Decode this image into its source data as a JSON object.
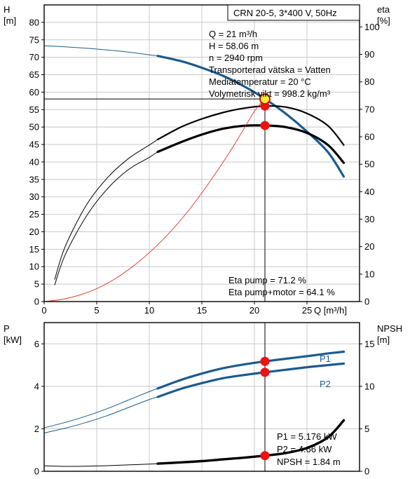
{
  "chart_data": [
    {
      "type": "line",
      "title": "CRN 20-5, 3*400 V, 50Hz",
      "xlabel": "Q [m³/h]",
      "ylabel_left": "H\n[m]",
      "ylabel_right": "eta\n[%]",
      "xlim": [
        0,
        30
      ],
      "ylim_left": [
        0,
        85
      ],
      "ylim_right": [
        0,
        108
      ],
      "x_ticks": [
        0,
        5,
        10,
        15,
        20,
        25
      ],
      "y_left_ticks": [
        0,
        5,
        10,
        15,
        20,
        25,
        30,
        35,
        40,
        45,
        50,
        55,
        60,
        65,
        70,
        75,
        80
      ],
      "y_right_ticks": [
        0,
        10,
        20,
        30,
        40,
        50,
        60,
        70,
        80,
        90,
        100
      ],
      "grid": true,
      "series": [
        {
          "axis": "left",
          "role": "head-extension",
          "color": "#1b5b8f",
          "x": [
            0,
            2,
            4,
            6,
            8,
            10,
            10.8
          ],
          "y": [
            73.3,
            73.0,
            72.6,
            72.1,
            71.5,
            70.7,
            70.4
          ]
        },
        {
          "axis": "left",
          "role": "head",
          "color": "#1b5b8f",
          "x": [
            10.8,
            13,
            15,
            17,
            19,
            21,
            23,
            25,
            27,
            28.5
          ],
          "y": [
            70.4,
            68.9,
            67.0,
            64.7,
            61.7,
            58.1,
            53.8,
            48.7,
            42.8,
            35.8
          ]
        },
        {
          "axis": "right",
          "role": "eta-pump",
          "color": "#000000",
          "x": [
            1,
            2,
            4,
            6,
            8,
            10,
            10.8,
            13,
            15,
            17,
            19,
            21,
            23,
            25,
            27,
            28.5
          ],
          "y": [
            8,
            20,
            35,
            45,
            52,
            57,
            59,
            63.5,
            66.5,
            68.8,
            70.4,
            71.2,
            70.8,
            68.5,
            64,
            57
          ]
        },
        {
          "axis": "right",
          "role": "eta-pump-motor",
          "color": "#000000",
          "x": [
            1,
            2,
            4,
            6,
            8,
            10,
            10.8,
            13,
            15,
            17,
            19,
            21,
            23,
            25,
            27,
            28.5
          ],
          "y": [
            6,
            17,
            31,
            41,
            48,
            52.5,
            54.5,
            58,
            60.8,
            62.9,
            64,
            64.1,
            63.5,
            61.4,
            57,
            50.5
          ]
        },
        {
          "axis": "left",
          "role": "system-curve",
          "color": "#e03020",
          "x": [
            0,
            2,
            4,
            6,
            8,
            10,
            12,
            14,
            16,
            18,
            20,
            21
          ],
          "y": [
            0,
            0.8,
            2.5,
            5.2,
            9.1,
            14,
            20,
            27.1,
            35.4,
            44.5,
            54.5,
            58.06
          ]
        }
      ],
      "duty_point": {
        "x": 21,
        "y": 58.06
      },
      "markers": [
        {
          "axis": "right",
          "x": 21,
          "y": 71.2
        },
        {
          "axis": "right",
          "x": 21,
          "y": 64.1
        }
      ],
      "annotations": {
        "info_lines": [
          "Q = 21 m³/h",
          "H = 58.06 m",
          "n = 2940 rpm",
          "Transporterad vätska = Vatten",
          "Mediatemperatur = 20 °C",
          "Volymetrisk vikt = 998.2 kg/m³"
        ],
        "eta_lines": [
          "Eta pump = 71.2 %",
          "Eta pump+motor = 64.1 %"
        ]
      }
    },
    {
      "type": "line",
      "xlim": [
        0,
        30
      ],
      "ylabel_left": "P\n[kW]",
      "ylabel_right": "NPSH\n[m]",
      "ylim_left": [
        0,
        7
      ],
      "ylim_right": [
        0,
        17.5
      ],
      "y_left_ticks": [
        0,
        2,
        4,
        6
      ],
      "y_right_ticks": [
        0,
        5,
        10,
        15
      ],
      "grid": true,
      "series": [
        {
          "name": "P1",
          "axis": "left",
          "color": "#1b5b8f",
          "x": [
            0,
            2,
            4,
            6,
            8,
            10,
            10.8,
            13,
            15,
            17,
            19,
            21,
            23,
            25,
            27,
            28.5
          ],
          "y": [
            2.05,
            2.3,
            2.6,
            2.95,
            3.35,
            3.75,
            3.9,
            4.3,
            4.6,
            4.85,
            5.03,
            5.176,
            5.3,
            5.42,
            5.55,
            5.63
          ]
        },
        {
          "name": "P2",
          "axis": "left",
          "color": "#1b5b8f",
          "x": [
            0,
            2,
            4,
            6,
            8,
            10,
            10.8,
            13,
            15,
            17,
            19,
            21,
            23,
            25,
            27,
            28.5
          ],
          "y": [
            1.8,
            2.03,
            2.3,
            2.62,
            3.0,
            3.38,
            3.5,
            3.88,
            4.15,
            4.38,
            4.53,
            4.66,
            4.78,
            4.9,
            5.0,
            5.07
          ]
        },
        {
          "name": "NPSH",
          "axis": "right",
          "color": "#000000",
          "x": [
            0,
            2,
            4,
            6,
            8,
            10,
            10.8,
            13,
            15,
            17,
            19,
            21,
            23,
            25,
            27,
            28.5
          ],
          "y": [
            0.65,
            0.58,
            0.6,
            0.66,
            0.75,
            0.85,
            0.9,
            1.05,
            1.2,
            1.4,
            1.6,
            1.84,
            2.15,
            2.75,
            4.0,
            6.0
          ]
        }
      ],
      "markers": [
        {
          "axis": "left",
          "x": 21,
          "y": 5.176
        },
        {
          "axis": "left",
          "x": 21,
          "y": 4.66
        },
        {
          "axis": "right",
          "x": 21,
          "y": 1.84
        }
      ],
      "annotations": {
        "curve_labels": [
          "P1",
          "P2"
        ],
        "info_lines": [
          "P1 = 5.176 kW",
          "P2 = 4.66 kW",
          "NPSH = 1.84 m"
        ]
      }
    }
  ]
}
